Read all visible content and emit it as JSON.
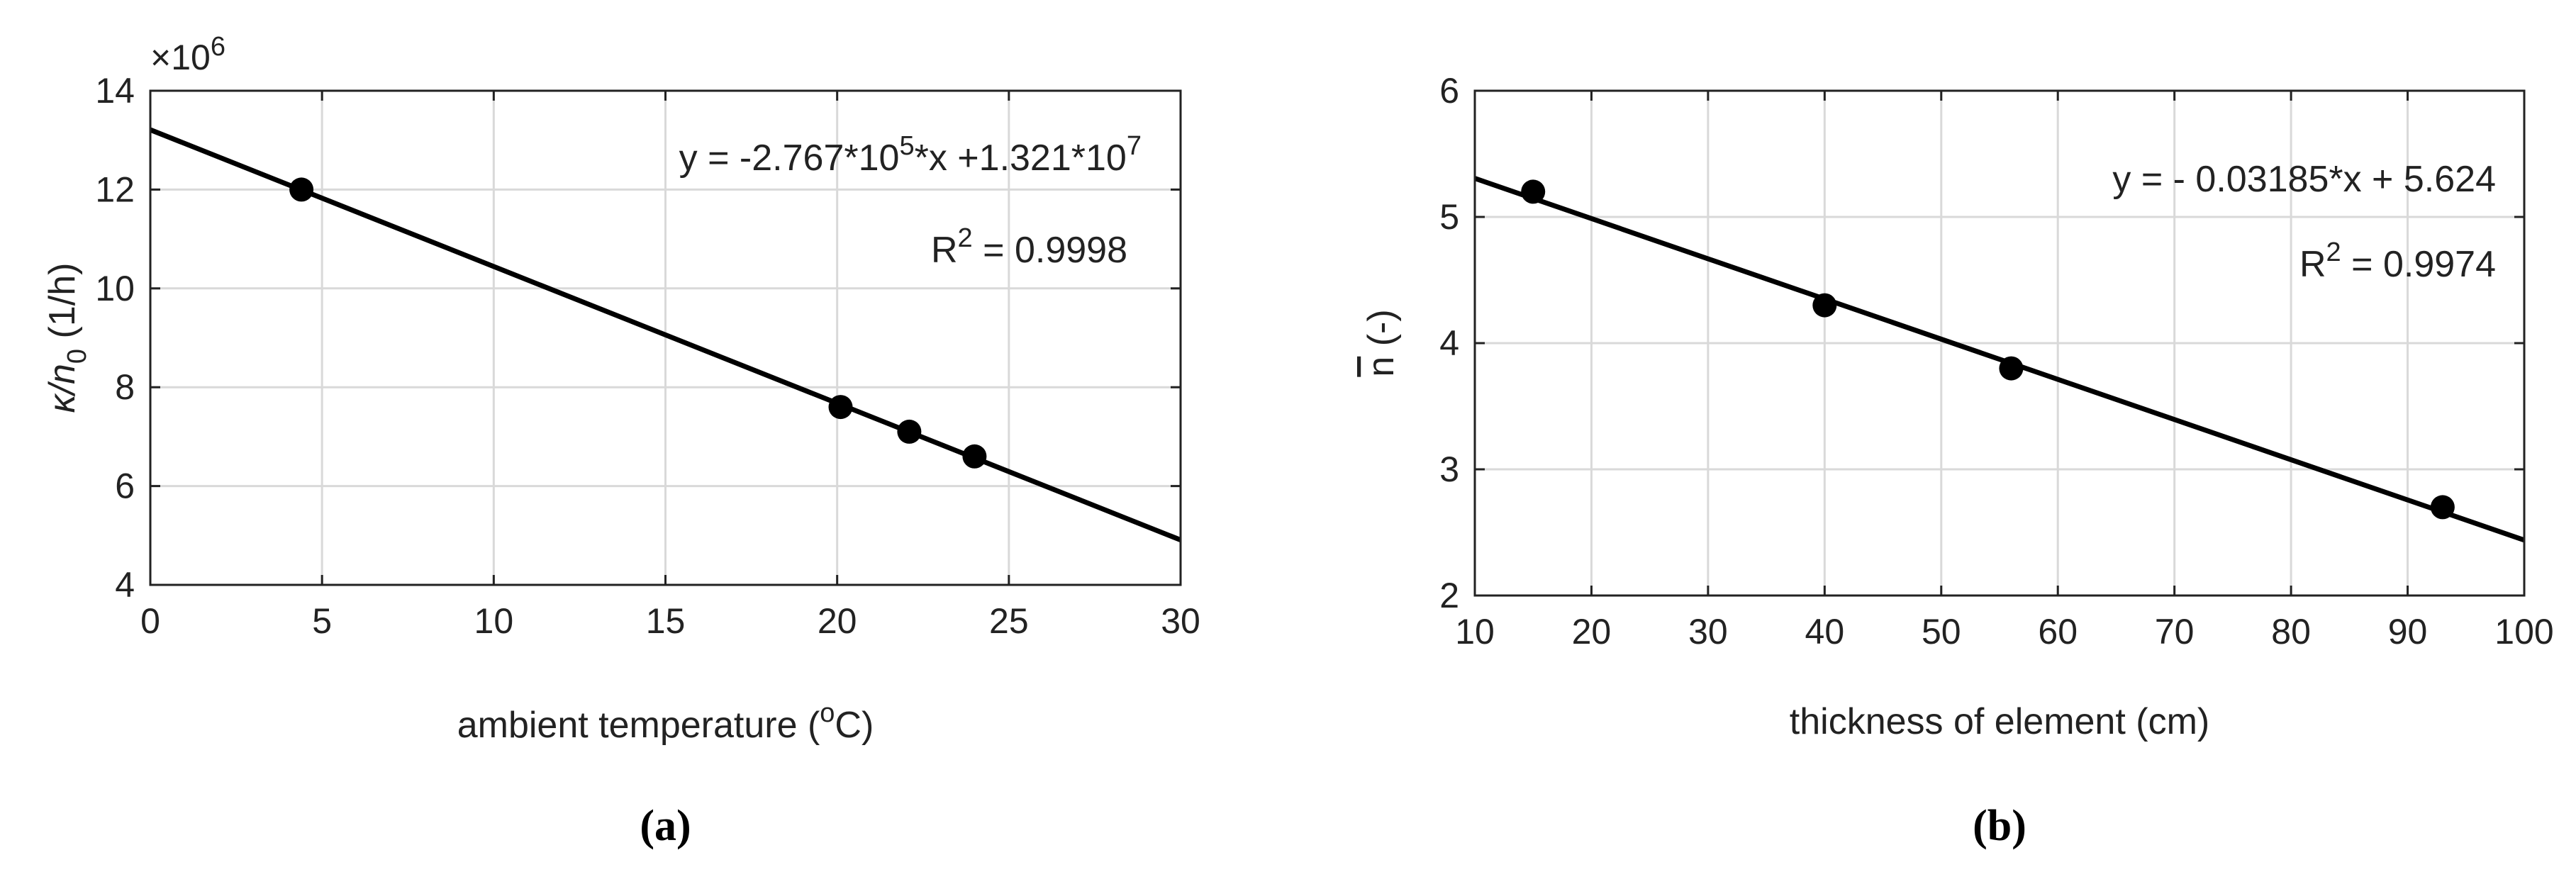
{
  "chart_data": [
    {
      "type": "scatter",
      "panel_label": "(a)",
      "xlabel": "ambient temperature (",
      "xlabel_sup": "o",
      "xlabel_end": "C)",
      "ylabel_main": "κ/n",
      "ylabel_sub": "0",
      "ylabel_unit": "(1/h)",
      "exponent_label": "×10",
      "exponent_sup": "6",
      "xlim": [
        0,
        30
      ],
      "ylim": [
        4,
        14
      ],
      "xticks": [
        0,
        5,
        10,
        15,
        20,
        25,
        30
      ],
      "yticks": [
        4,
        6,
        8,
        10,
        12,
        14
      ],
      "ytick_labels": [
        "4",
        "6",
        "8",
        "10",
        "12",
        "14"
      ],
      "grid": true,
      "points": [
        {
          "x": 4.4,
          "y": 12.0
        },
        {
          "x": 20.1,
          "y": 7.6
        },
        {
          "x": 22.1,
          "y": 7.1
        },
        {
          "x": 24.0,
          "y": 6.6
        }
      ],
      "fit": {
        "x": [
          0,
          30
        ],
        "y": [
          13.21,
          4.909
        ]
      },
      "equation": [
        "y = -2.767*10",
        "5",
        "*x +1.321*10",
        "7"
      ],
      "r2": [
        "R",
        "2",
        " = 0.9998"
      ]
    },
    {
      "type": "scatter",
      "panel_label": "(b)",
      "xlabel": "thickness of element (cm)",
      "ylabel_main": "n",
      "ylabel_unit": "(-)",
      "xlim": [
        10,
        100
      ],
      "ylim": [
        2,
        6
      ],
      "xticks": [
        10,
        20,
        30,
        40,
        50,
        60,
        70,
        80,
        90,
        100
      ],
      "yticks": [
        2,
        3,
        4,
        5,
        6
      ],
      "ytick_labels": [
        "2",
        "3",
        "4",
        "5",
        "6"
      ],
      "grid": true,
      "points": [
        {
          "x": 15,
          "y": 5.2
        },
        {
          "x": 40,
          "y": 4.3
        },
        {
          "x": 56,
          "y": 3.8
        },
        {
          "x": 93,
          "y": 2.7
        }
      ],
      "fit": {
        "x": [
          10,
          100
        ],
        "y": [
          5.3055,
          2.439
        ]
      },
      "equation": [
        "y = - 0.03185*x + 5.624"
      ],
      "r2": [
        "R",
        "2",
        " = 0.9974"
      ]
    }
  ]
}
